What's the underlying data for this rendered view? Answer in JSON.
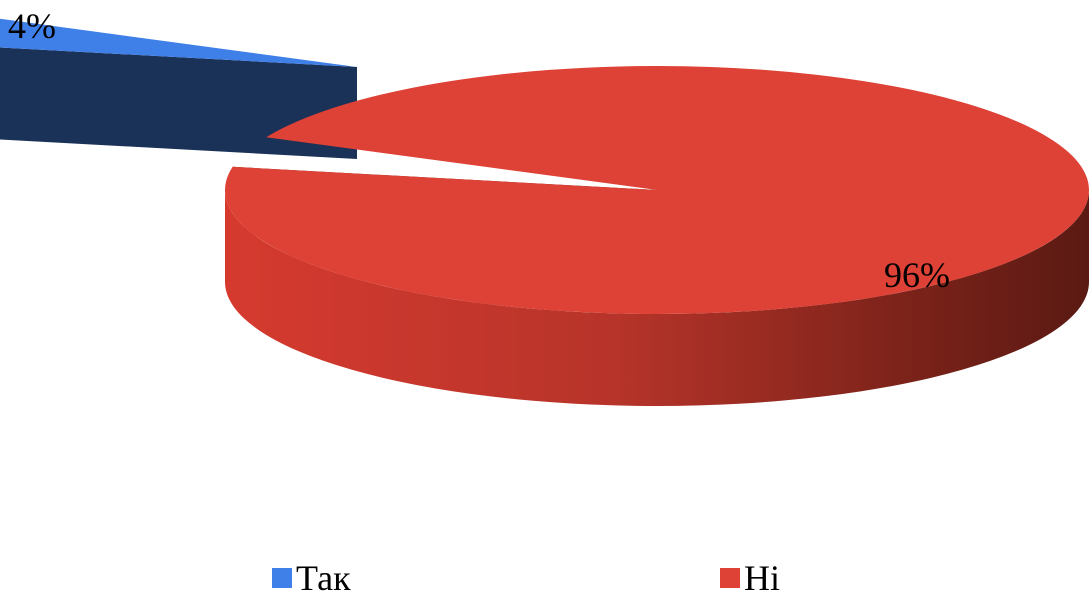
{
  "chart_data": {
    "type": "pie",
    "categories": [
      "Так",
      "Ні"
    ],
    "values": [
      4,
      96
    ],
    "value_labels": [
      "4%",
      "96%"
    ],
    "colors": [
      "#3f7fe8",
      "#de4135"
    ],
    "legend_position": "bottom",
    "style": "3d-exploded"
  }
}
